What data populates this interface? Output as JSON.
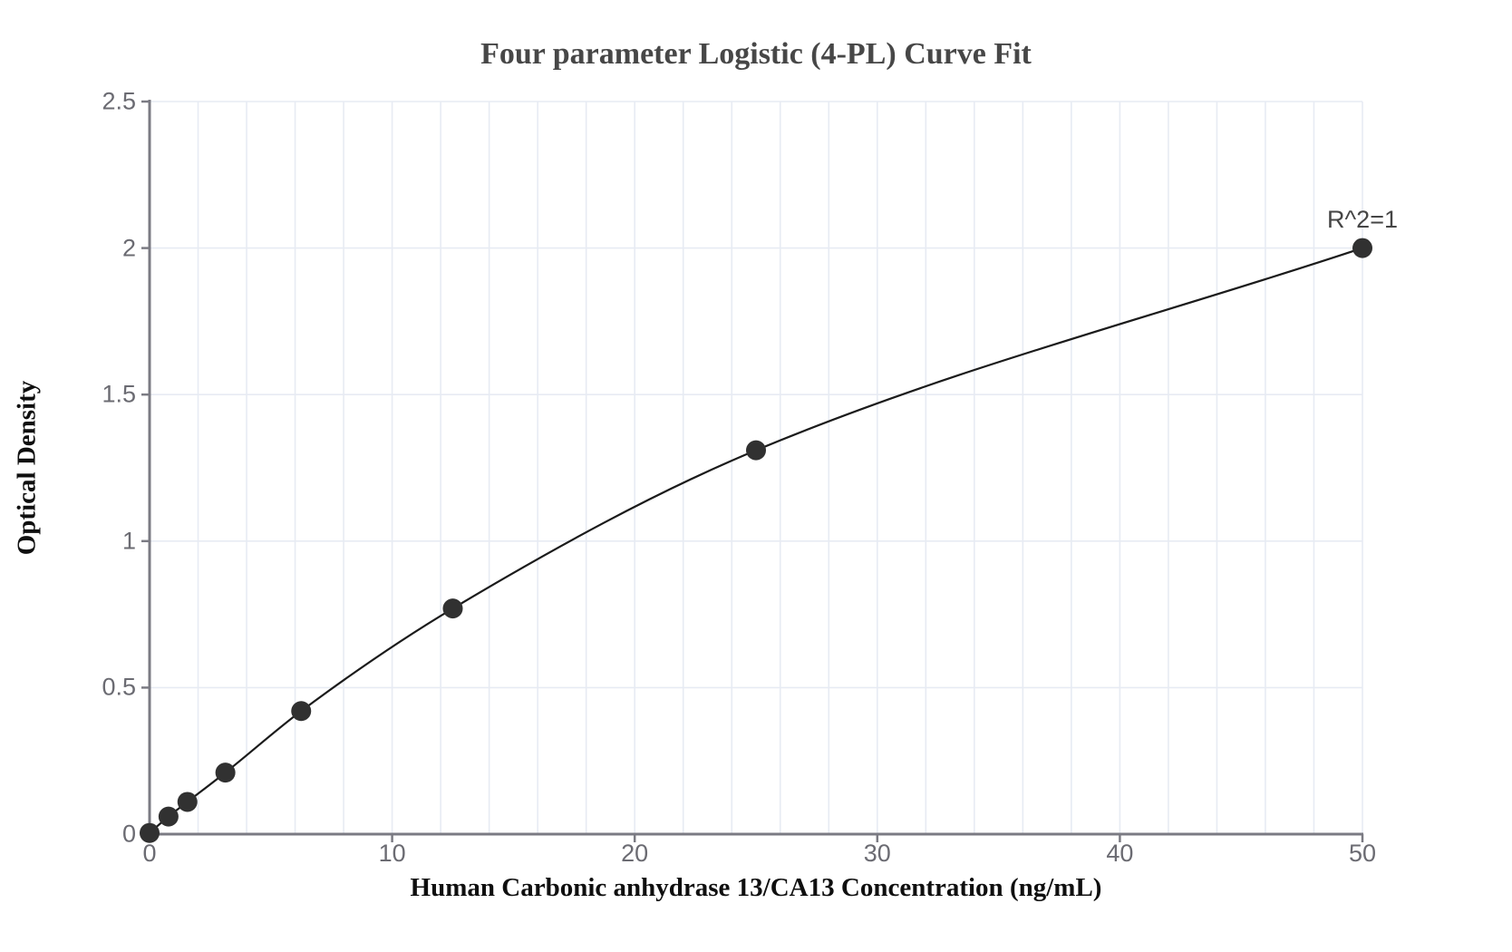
{
  "chart_data": {
    "type": "scatter",
    "title": "Four parameter Logistic (4-PL) Curve Fit",
    "xlabel": "Human Carbonic anhydrase 13/CA13 Concentration (ng/mL)",
    "ylabel": "Optical Density",
    "series": [
      {
        "name": "standard-curve-points",
        "x": [
          0,
          0.78,
          1.56,
          3.125,
          6.25,
          12.5,
          25,
          50
        ],
        "y": [
          0.004,
          0.06,
          0.11,
          0.21,
          0.42,
          0.77,
          1.31,
          2.0
        ]
      }
    ],
    "fit_line": "smooth 4-PL curve passing through all data points",
    "annotation": {
      "text": "R^2=1",
      "x": 50,
      "y": 2.0,
      "position": "above-last-point"
    },
    "xlim": [
      0,
      50
    ],
    "ylim": [
      0,
      2.5
    ],
    "x_ticks": [
      "0",
      "10",
      "20",
      "30",
      "40",
      "50"
    ],
    "x_tick_values": [
      0,
      10,
      20,
      30,
      40,
      50
    ],
    "y_ticks": [
      "0",
      "0.5",
      "1",
      "1.5",
      "2",
      "2.5"
    ],
    "y_tick_values": [
      0,
      0.5,
      1,
      1.5,
      2,
      2.5
    ],
    "grid": true,
    "x_minor_grid_step": 2,
    "legend": false,
    "colors": {
      "background": "#ffffff",
      "grid": "#e7ebf3",
      "axis": "#7b7b83",
      "tick_label": "#6b6b72",
      "title": "#474747",
      "axis_label": "#0f0f0f",
      "point": "#313131",
      "curve": "#1b1b1b",
      "annotation": "#454545"
    }
  }
}
